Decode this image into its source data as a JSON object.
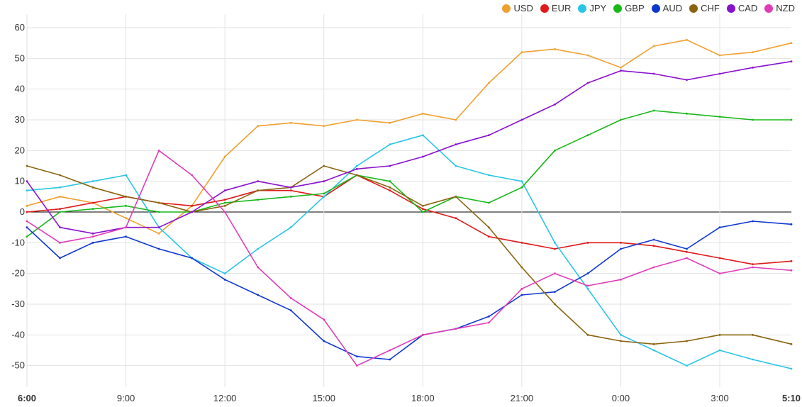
{
  "chart_data": {
    "type": "line",
    "title": "",
    "xlabel": "",
    "ylabel": "",
    "ylim": [
      -57,
      63
    ],
    "y_ticks": [
      60,
      50,
      40,
      30,
      20,
      10,
      0,
      -10,
      -20,
      -30,
      -40,
      -50
    ],
    "x_ticks": [
      {
        "label": "6:00",
        "hour": 0,
        "bold": true
      },
      {
        "label": "9:00",
        "hour": 3,
        "bold": false
      },
      {
        "label": "12:00",
        "hour": 6,
        "bold": false
      },
      {
        "label": "15:00",
        "hour": 9,
        "bold": false
      },
      {
        "label": "18:00",
        "hour": 12,
        "bold": false
      },
      {
        "label": "21:00",
        "hour": 15,
        "bold": false
      },
      {
        "label": "0:00",
        "hour": 18,
        "bold": false
      },
      {
        "label": "3:00",
        "hour": 21,
        "bold": false
      },
      {
        "label": "5:10",
        "hour": 23.17,
        "bold": true
      }
    ],
    "x_range_hours": [
      0,
      23.17
    ],
    "grid": true,
    "legend_position": "top-right",
    "x_hours": [
      0,
      1,
      2,
      3,
      4,
      5,
      6,
      7,
      8,
      9,
      10,
      11,
      12,
      13,
      14,
      15,
      16,
      17,
      18,
      19,
      20,
      21,
      22,
      23.17
    ],
    "series": [
      {
        "name": "USD",
        "color": "#f0a030",
        "values": [
          2,
          5,
          3,
          -2,
          -7,
          2,
          18,
          28,
          29,
          28,
          30,
          29,
          32,
          30,
          42,
          52,
          53,
          51,
          47,
          54,
          56,
          51,
          52,
          55
        ]
      },
      {
        "name": "EUR",
        "color": "#e01a1a",
        "values": [
          0,
          1,
          3,
          5,
          3,
          2,
          4,
          7,
          7,
          5,
          12,
          7,
          1,
          -2,
          -8,
          -10,
          -12,
          -10,
          -10,
          -11,
          -13,
          -15,
          -17,
          -16
        ]
      },
      {
        "name": "JPY",
        "color": "#29c5e6",
        "values": [
          7,
          8,
          10,
          12,
          -5,
          -15,
          -20,
          -12,
          -5,
          5,
          15,
          22,
          25,
          15,
          12,
          10,
          -10,
          -25,
          -40,
          -45,
          -50,
          -45,
          -48,
          -51
        ]
      },
      {
        "name": "GBP",
        "color": "#18b818",
        "values": [
          -8,
          0,
          1,
          2,
          0,
          0,
          3,
          4,
          5,
          6,
          12,
          10,
          0,
          5,
          3,
          8,
          20,
          25,
          30,
          33,
          32,
          31,
          30,
          30
        ]
      },
      {
        "name": "AUD",
        "color": "#1038d0",
        "values": [
          -5,
          -15,
          -10,
          -8,
          -12,
          -15,
          -22,
          -27,
          -32,
          -42,
          -47,
          -48,
          -40,
          -38,
          -34,
          -27,
          -26,
          -20,
          -12,
          -9,
          -12,
          -5,
          -3,
          -4
        ]
      },
      {
        "name": "CHF",
        "color": "#8a6510",
        "values": [
          15,
          12,
          8,
          5,
          3,
          0,
          2,
          7,
          8,
          15,
          12,
          8,
          2,
          5,
          -5,
          -18,
          -30,
          -40,
          -42,
          -43,
          -42,
          -40,
          -40,
          -43
        ]
      },
      {
        "name": "CAD",
        "color": "#8a10d0",
        "values": [
          10,
          -5,
          -7,
          -5,
          -5,
          0,
          7,
          10,
          8,
          10,
          14,
          15,
          18,
          22,
          25,
          30,
          35,
          42,
          46,
          45,
          43,
          45,
          47,
          49
        ]
      },
      {
        "name": "NZD",
        "color": "#e03cb8",
        "values": [
          -3,
          -10,
          -8,
          -5,
          20,
          12,
          0,
          -18,
          -28,
          -35,
          -50,
          -45,
          -40,
          -38,
          -36,
          -25,
          -20,
          -24,
          -22,
          -18,
          -15,
          -20,
          -18,
          -19
        ]
      }
    ]
  }
}
